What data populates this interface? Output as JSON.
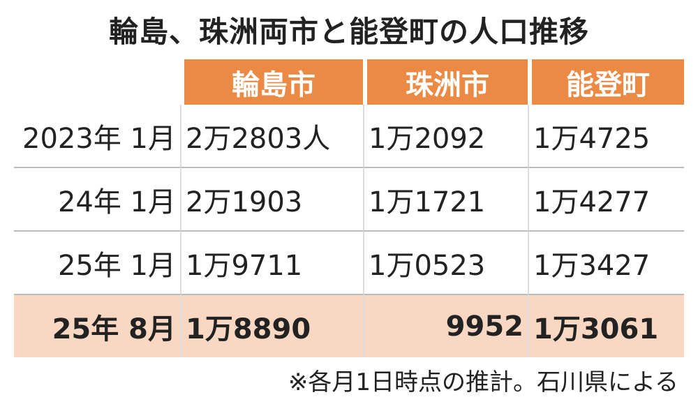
{
  "title": "輪島、珠洲両市と能登町の人口推移",
  "table": {
    "header": [
      "輪島市",
      "珠洲市",
      "能登町"
    ],
    "rows": [
      {
        "label": "2023年 1月",
        "cells": [
          "2万2803人",
          "1万2092",
          "1万4725"
        ]
      },
      {
        "label": "24年 1月",
        "cells": [
          "2万1903",
          "1万1721",
          "1万4277"
        ]
      },
      {
        "label": "25年 1月",
        "cells": [
          "1万9711",
          "1万0523",
          "1万3427"
        ]
      },
      {
        "label": "25年 8月",
        "cells": [
          "1万8890",
          "9952",
          "1万3061"
        ]
      }
    ]
  },
  "note": "※各月1日時点の推計。石川県による"
}
